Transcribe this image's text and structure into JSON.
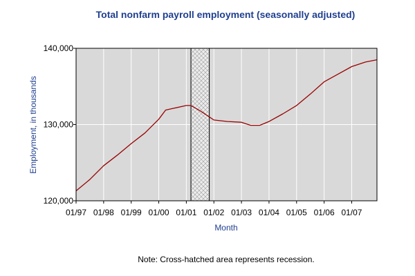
{
  "chart_data": {
    "type": "line",
    "title": "Total nonfarm payroll employment (seasonally adjusted)",
    "xlabel": "Month",
    "ylabel": "Employment, in thousands",
    "note": "Note: Cross-hatched area represents recession.",
    "x_tick_labels": [
      "01/97",
      "01/98",
      "01/99",
      "01/00",
      "01/01",
      "01/02",
      "01/03",
      "01/04",
      "01/05",
      "01/06",
      "01/07"
    ],
    "y_ticks": [
      120000,
      130000,
      140000
    ],
    "y_tick_labels": [
      "120,000",
      "130,000",
      "140,000"
    ],
    "ylim": [
      120000,
      140000
    ],
    "xlim": [
      "1997-01",
      "2007-12"
    ],
    "grid": true,
    "recession": {
      "start": "2001-03",
      "end": "2001-11"
    },
    "colors": {
      "line": "#990000",
      "plot_bg": "#d9d9d9",
      "grid": "#ffffff",
      "title": "#1f3f8f"
    },
    "series": [
      {
        "x": [
          "1997-01",
          "1997-07",
          "1998-01",
          "1998-07",
          "1999-01",
          "1999-07",
          "2000-01",
          "2000-04",
          "2000-07",
          "2001-01",
          "2001-03",
          "2001-07",
          "2001-11",
          "2002-01",
          "2002-07",
          "2003-01",
          "2003-05",
          "2003-09",
          "2004-01",
          "2004-07",
          "2005-01",
          "2005-07",
          "2006-01",
          "2006-07",
          "2007-01",
          "2007-07",
          "2007-12"
        ],
        "y": [
          121300,
          122800,
          124600,
          126000,
          127500,
          128900,
          130700,
          131900,
          132100,
          132500,
          132500,
          131800,
          131000,
          130600,
          130400,
          130300,
          129900,
          129900,
          130400,
          131400,
          132500,
          134000,
          135600,
          136600,
          137600,
          138200,
          138500
        ]
      }
    ]
  }
}
